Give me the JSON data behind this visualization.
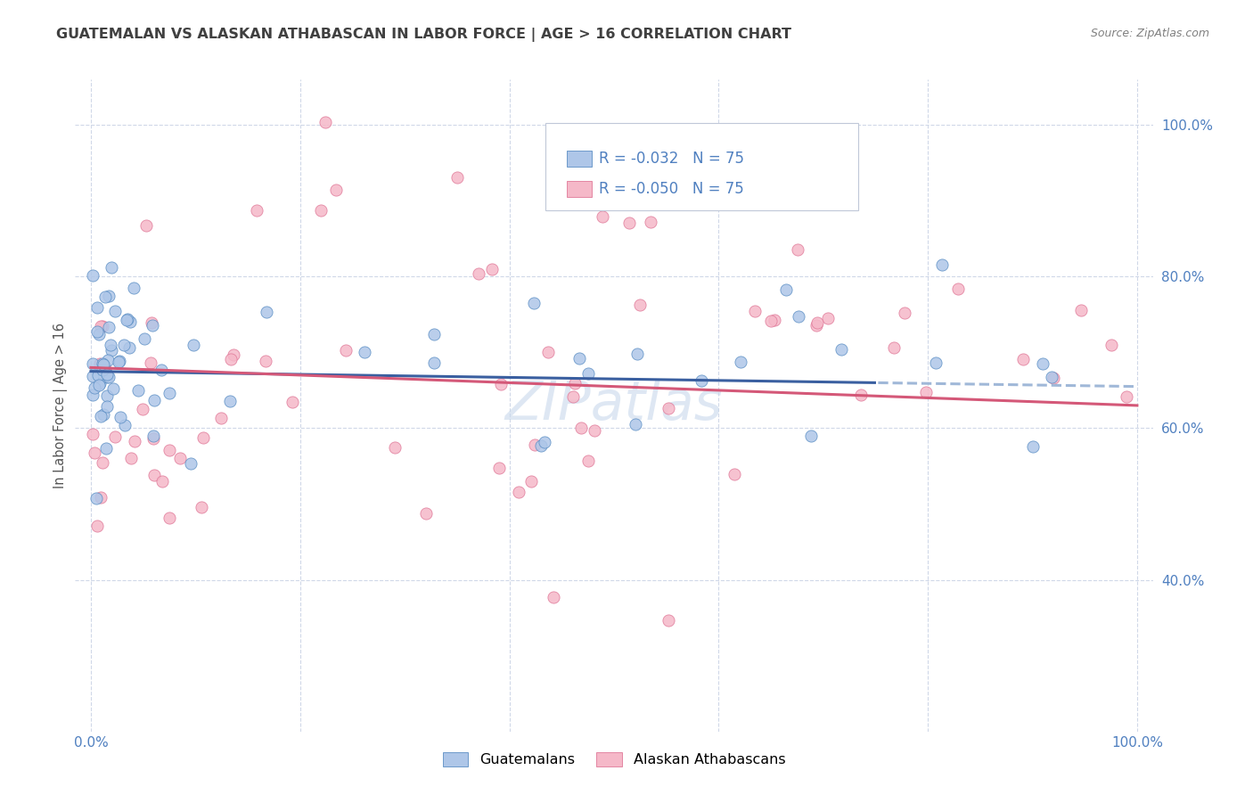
{
  "title": "GUATEMALAN VS ALASKAN ATHABASCAN IN LABOR FORCE | AGE > 16 CORRELATION CHART",
  "source": "Source: ZipAtlas.com",
  "ylabel": "In Labor Force | Age > 16",
  "R1": "-0.032",
  "N1": "75",
  "R2": "-0.050",
  "N2": "75",
  "color_blue_fill": "#aec6e8",
  "color_blue_edge": "#5b8ec4",
  "color_pink_fill": "#f5b8c8",
  "color_pink_edge": "#e07898",
  "color_line_blue": "#3a5fa0",
  "color_line_pink": "#d45878",
  "color_line_blue_dash": "#a0b8d8",
  "color_grid": "#d0d8e8",
  "background_color": "#ffffff",
  "title_color": "#404040",
  "source_color": "#808080",
  "tick_color": "#5080c0",
  "ylabel_color": "#555555",
  "watermark_color": "#c8d8ec",
  "legend_label1": "Guatemalans",
  "legend_label2": "Alaskan Athabascans",
  "xlim": [
    -0.015,
    1.015
  ],
  "ylim": [
    0.2,
    1.06
  ],
  "yticks": [
    0.4,
    0.6,
    0.8,
    1.0
  ],
  "ytick_labels": [
    "40.0%",
    "60.0%",
    "80.0%",
    "100.0%"
  ],
  "xtick_positions": [
    0.0,
    0.2,
    0.4,
    0.6,
    0.8,
    1.0
  ],
  "xtick_labels": [
    "0.0%",
    "",
    "",
    "",
    "",
    "100.0%"
  ]
}
